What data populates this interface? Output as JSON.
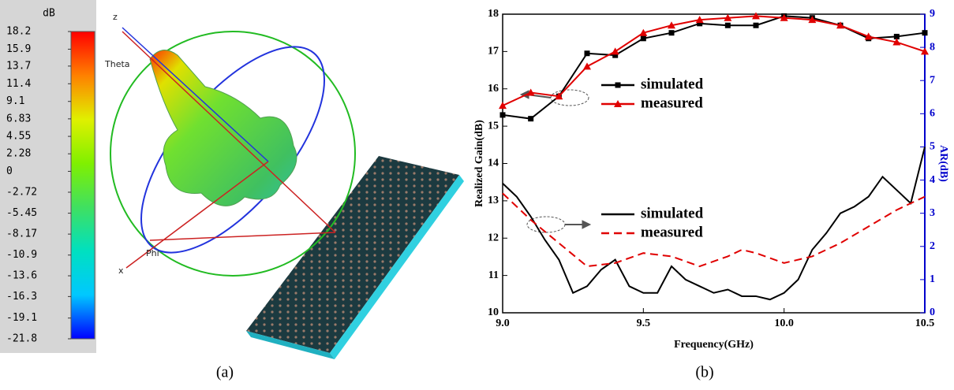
{
  "panel_a": {
    "caption": "(a)",
    "axis_labels": {
      "z": "z",
      "theta": "Theta",
      "phi": "Phi",
      "x": "x"
    }
  },
  "panel_b": {
    "caption": "(b)"
  },
  "chart_data": [
    {
      "type": "colorbar",
      "title": "dB",
      "ylim": [
        -21.8,
        18.2
      ],
      "yticks": [
        18.2,
        15.9,
        13.7,
        11.4,
        9.1,
        6.83,
        4.55,
        2.28,
        0,
        -2.72,
        -5.45,
        -8.17,
        -10.9,
        -13.6,
        -16.3,
        -19.1,
        -21.8
      ],
      "colors": [
        "#0000ff",
        "#00c8ff",
        "#00e0c0",
        "#40e060",
        "#80f000",
        "#e0f000",
        "#ff8000",
        "#ff0000"
      ]
    },
    {
      "type": "line",
      "xlabel": "Frequency(GHz)",
      "ylabel": "Realized Gain(dB)",
      "y2label": "AR(dB)",
      "xlim": [
        9.0,
        10.5
      ],
      "xticks": [
        {
          "value": 9.0,
          "label": "9.0"
        },
        {
          "value": 9.5,
          "label": "9.5"
        },
        {
          "value": 10.0,
          "label": "10.0"
        },
        {
          "value": 10.5,
          "label": "10.5"
        }
      ],
      "ylim": [
        10,
        18
      ],
      "yticks": [
        10,
        11,
        12,
        13,
        14,
        15,
        16,
        17,
        18
      ],
      "y2lim": [
        0,
        9
      ],
      "y2ticks": [
        0,
        1,
        2,
        3,
        4,
        5,
        6,
        7,
        8,
        9
      ],
      "y2color": "#0000cc",
      "series": [
        {
          "name": "simulated",
          "color": "#000000",
          "marker": "square",
          "dash": false,
          "x": [
            9.0,
            9.1,
            9.2,
            9.3,
            9.4,
            9.5,
            9.6,
            9.7,
            9.8,
            9.9,
            10.0,
            10.1,
            10.2,
            10.3,
            10.4,
            10.5
          ],
          "values": [
            15.3,
            15.2,
            15.8,
            16.95,
            16.9,
            17.35,
            17.5,
            17.75,
            17.7,
            17.7,
            17.95,
            17.9,
            17.7,
            17.35,
            17.4,
            17.5
          ]
        },
        {
          "name": "measured",
          "color": "#e00000",
          "marker": "triangle",
          "dash": false,
          "x": [
            9.0,
            9.1,
            9.2,
            9.3,
            9.4,
            9.5,
            9.6,
            9.7,
            9.8,
            9.9,
            10.0,
            10.1,
            10.2,
            10.3,
            10.4,
            10.5
          ],
          "values": [
            15.55,
            15.9,
            15.8,
            16.6,
            17.0,
            17.5,
            17.7,
            17.85,
            17.9,
            17.95,
            17.9,
            17.85,
            17.7,
            17.4,
            17.25,
            17.0
          ]
        },
        {
          "name": "simulated",
          "color": "#000000",
          "marker": "none",
          "dash": false,
          "axis": "y2",
          "x": [
            9.0,
            9.05,
            9.1,
            9.15,
            9.2,
            9.25,
            9.3,
            9.35,
            9.4,
            9.45,
            9.5,
            9.55,
            9.6,
            9.65,
            9.7,
            9.75,
            9.8,
            9.85,
            9.9,
            9.95,
            10.0,
            10.05,
            10.1,
            10.15,
            10.2,
            10.25,
            10.3,
            10.35,
            10.4,
            10.45,
            10.5
          ],
          "values": [
            3.9,
            3.5,
            2.9,
            2.2,
            1.6,
            0.6,
            0.8,
            1.3,
            1.6,
            0.8,
            0.6,
            0.6,
            1.4,
            1.0,
            0.8,
            0.6,
            0.7,
            0.5,
            0.5,
            0.4,
            0.6,
            1.0,
            1.9,
            2.4,
            3.0,
            3.2,
            3.5,
            4.1,
            3.7,
            3.3,
            5.0
          ]
        },
        {
          "name": "measured",
          "color": "#e00000",
          "marker": "none",
          "dash": true,
          "axis": "y2",
          "x": [
            9.0,
            9.1,
            9.2,
            9.3,
            9.4,
            9.5,
            9.6,
            9.7,
            9.8,
            9.85,
            9.9,
            10.0,
            10.1,
            10.2,
            10.3,
            10.4,
            10.5
          ],
          "values": [
            3.6,
            2.8,
            2.1,
            1.4,
            1.5,
            1.8,
            1.7,
            1.4,
            1.7,
            1.9,
            1.8,
            1.5,
            1.7,
            2.1,
            2.6,
            3.1,
            3.5
          ]
        }
      ]
    }
  ]
}
